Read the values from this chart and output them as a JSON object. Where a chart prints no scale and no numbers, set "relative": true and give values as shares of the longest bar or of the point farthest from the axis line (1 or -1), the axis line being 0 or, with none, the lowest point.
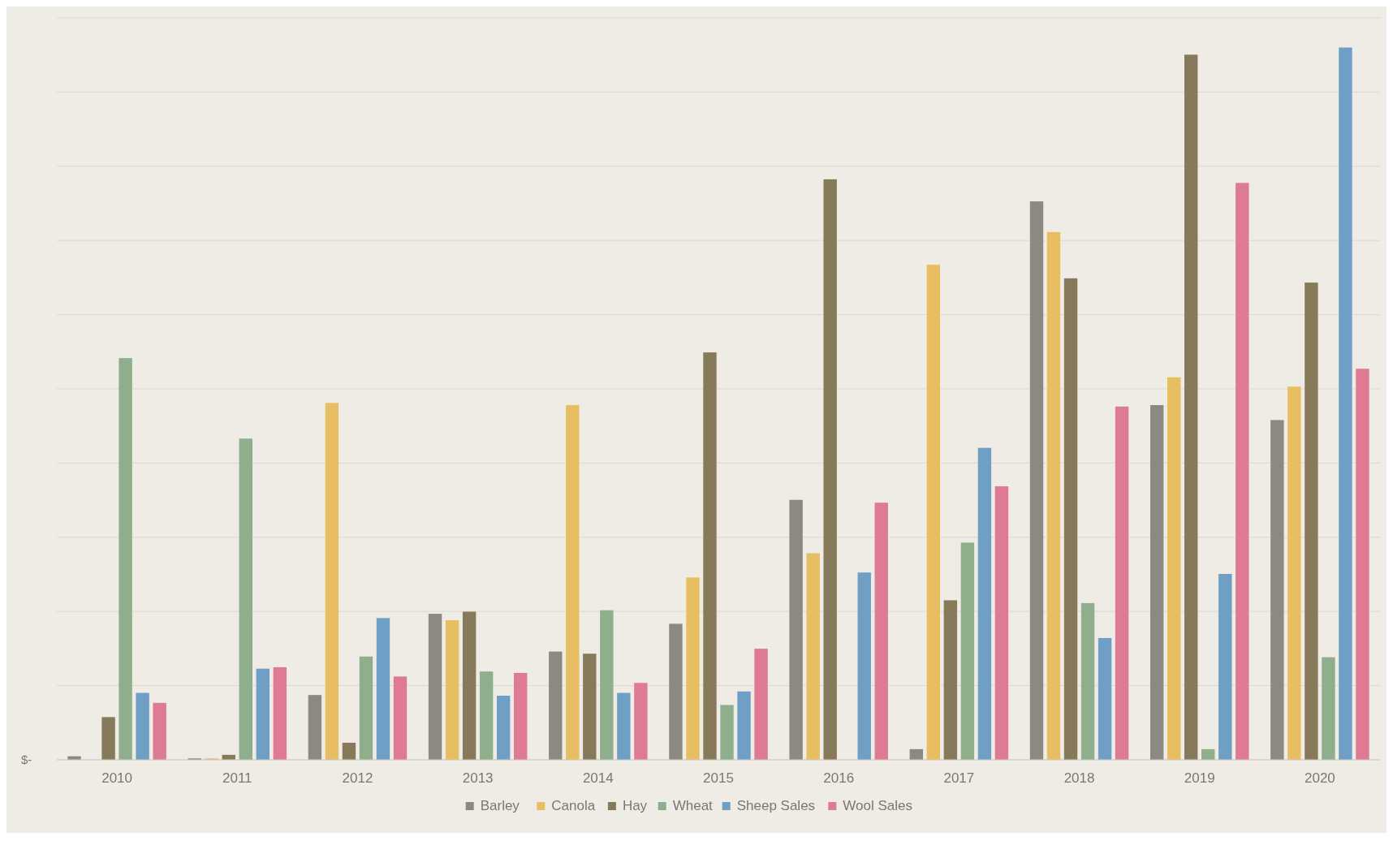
{
  "chart_data": {
    "type": "bar",
    "relative": true,
    "categories": [
      "2010",
      "2011",
      "2012",
      "2013",
      "2014",
      "2015",
      "2016",
      "2017",
      "2018",
      "2019",
      "2020"
    ],
    "series": [
      {
        "name": "Barley",
        "color": "#8c8a80",
        "values": [
          0.005,
          0.002,
          0.091,
          0.205,
          0.152,
          0.191,
          0.365,
          0.015,
          0.784,
          0.498,
          0.477
        ]
      },
      {
        "name": "Canola",
        "color": "#e8be62",
        "values": [
          0,
          0.002,
          0.501,
          0.196,
          0.498,
          0.256,
          0.29,
          0.695,
          0.741,
          0.537,
          0.524
        ]
      },
      {
        "name": "Hay",
        "color": "#877a5a",
        "values": [
          0.06,
          0.007,
          0.024,
          0.208,
          0.149,
          0.572,
          0.815,
          0.224,
          0.676,
          0.99,
          0.67
        ]
      },
      {
        "name": "Wheat",
        "color": "#8fae8c",
        "values": [
          0.564,
          0.451,
          0.145,
          0.124,
          0.21,
          0.077,
          0,
          0.305,
          0.22,
          0.015,
          0.144
        ]
      },
      {
        "name": "Sheep Sales",
        "color": "#6f9fc4",
        "values": [
          0.094,
          0.128,
          0.199,
          0.09,
          0.094,
          0.096,
          0.263,
          0.438,
          0.171,
          0.261,
          1
        ]
      },
      {
        "name": "Wool Sales",
        "color": "#de7b92",
        "values": [
          0.08,
          0.13,
          0.117,
          0.122,
          0.108,
          0.156,
          0.361,
          0.384,
          0.496,
          0.81,
          0.549
        ]
      }
    ],
    "grid": true,
    "legend": "bottom",
    "annotations": [
      "$-"
    ]
  }
}
